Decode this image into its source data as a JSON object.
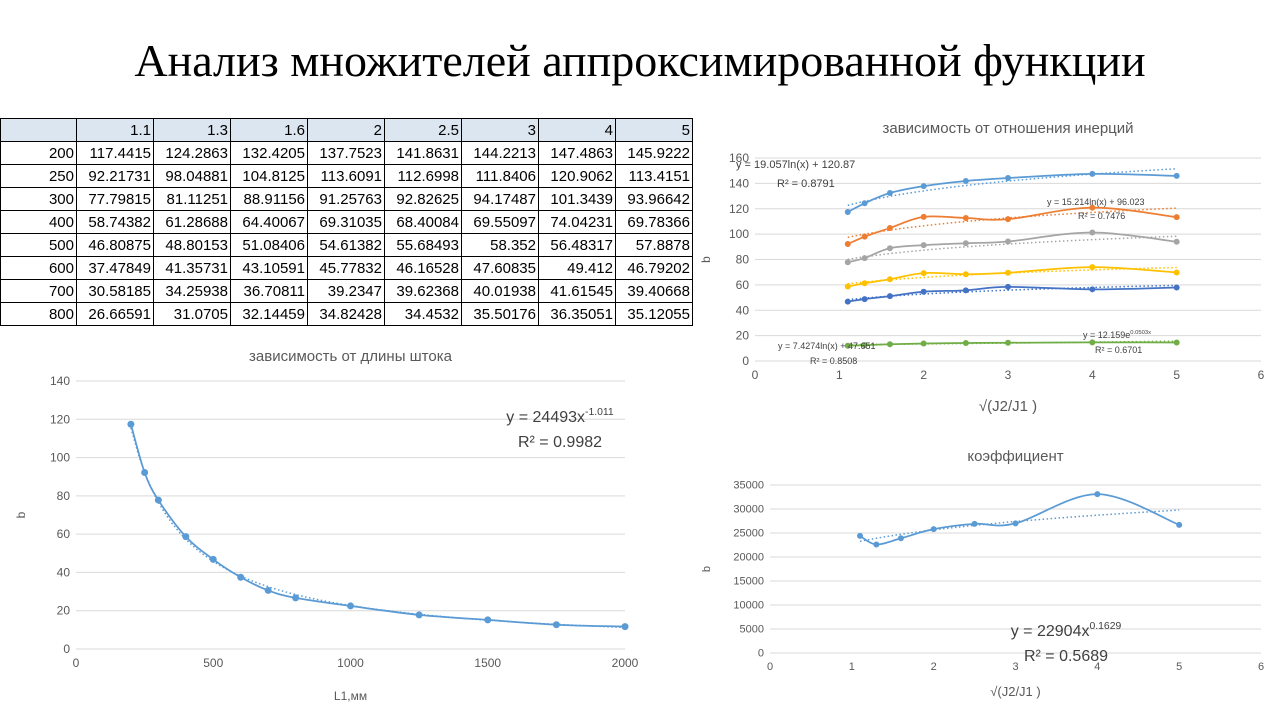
{
  "title": "Анализ множителей аппроксимированной функции",
  "table": {
    "columns": [
      "",
      "1.1",
      "1.3",
      "1.6",
      "2",
      "2.5",
      "3",
      "4",
      "5"
    ],
    "rows": [
      [
        "200",
        "117.4415",
        "124.2863",
        "132.4205",
        "137.7523",
        "141.8631",
        "144.2213",
        "147.4863",
        "145.9222"
      ],
      [
        "250",
        "92.21731",
        "98.04881",
        "104.8125",
        "113.6091",
        "112.6998",
        "111.8406",
        "120.9062",
        "113.4151"
      ],
      [
        "300",
        "77.79815",
        "81.11251",
        "88.91156",
        "91.25763",
        "92.82625",
        "94.17487",
        "101.3439",
        "93.96642"
      ],
      [
        "400",
        "58.74382",
        "61.28688",
        "64.40067",
        "69.31035",
        "68.40084",
        "69.55097",
        "74.04231",
        "69.78366"
      ],
      [
        "500",
        "46.80875",
        "48.80153",
        "51.08406",
        "54.61382",
        "55.68493",
        "58.352",
        "56.48317",
        "57.8878"
      ],
      [
        "600",
        "37.47849",
        "41.35731",
        "43.10591",
        "45.77832",
        "46.16528",
        "47.60835",
        "49.412",
        "46.79202"
      ],
      [
        "700",
        "30.58185",
        "34.25938",
        "36.70811",
        "39.2347",
        "39.62368",
        "40.01938",
        "41.61545",
        "39.40668"
      ],
      [
        "800",
        "26.66591",
        "31.0705",
        "32.14459",
        "34.82428",
        "34.4532",
        "35.50176",
        "36.35051",
        "35.12055"
      ]
    ]
  },
  "chart_data": [
    {
      "id": "inertia",
      "type": "line",
      "title": "зависимость от отношения инерций",
      "xlabel": "√(J2/J1 )",
      "ylabel": "b",
      "xlim": [
        0,
        6
      ],
      "ylim": [
        0,
        160
      ],
      "xticks": [
        0,
        1,
        2,
        3,
        4,
        5,
        6
      ],
      "yticks": [
        0,
        20,
        40,
        60,
        80,
        100,
        120,
        140,
        160
      ],
      "x": [
        1.1,
        1.3,
        1.6,
        2,
        2.5,
        3,
        4,
        5
      ],
      "series": [
        {
          "color": "#5b9bd5",
          "values": [
            117.4,
            124.3,
            132.4,
            137.8,
            141.9,
            144.2,
            147.5,
            145.9
          ]
        },
        {
          "color": "#ed7d31",
          "values": [
            92.2,
            98.0,
            104.8,
            113.6,
            112.7,
            111.8,
            120.9,
            113.4
          ]
        },
        {
          "color": "#a5a5a5",
          "values": [
            77.8,
            81.1,
            88.9,
            91.3,
            92.8,
            94.2,
            101.3,
            94.0
          ]
        },
        {
          "color": "#ffc000",
          "values": [
            58.7,
            61.3,
            64.4,
            69.3,
            68.4,
            69.6,
            74.0,
            69.8
          ]
        },
        {
          "color": "#4472c4",
          "values": [
            46.8,
            48.8,
            51.1,
            54.6,
            55.7,
            58.4,
            56.5,
            57.9
          ]
        },
        {
          "color": "#70ad47",
          "values": [
            12.0,
            12.5,
            13.2,
            13.8,
            14.2,
            14.4,
            14.7,
            14.6
          ]
        }
      ],
      "trendlines": [
        {
          "series": 0,
          "kind": "log",
          "a": 19.057,
          "b": 120.87
        },
        {
          "series": 1,
          "kind": "log",
          "a": 15.214,
          "b": 96.023
        },
        {
          "series": 2,
          "kind": "log",
          "a": 12.0,
          "b": 79.0
        },
        {
          "series": 3,
          "kind": "log",
          "a": 8.5,
          "b": 60.0
        },
        {
          "series": 4,
          "kind": "log",
          "a": 7.4274,
          "b": 47.651
        },
        {
          "series": 5,
          "kind": "exp",
          "a": 12.159,
          "b": 0.0503
        }
      ],
      "annotations": [
        {
          "eq": "y = 19.057ln(x) + 120.87",
          "r2": "R² = 0.8791"
        },
        {
          "eq": "y = 15.214ln(x) + 96.023",
          "r2": "R² = 0.7476"
        },
        {
          "eq": "y = 7.4274ln(x) + 47.651",
          "r2": "R² = 0.8508"
        },
        {
          "eq_base": "y = 12.159e",
          "eq_sup": "0.0503x",
          "r2": "R² = 0.6701"
        }
      ]
    },
    {
      "id": "rod",
      "type": "line",
      "title": "зависимость от длины штока",
      "xlabel": "L1,мм",
      "ylabel": "b",
      "xlim": [
        0,
        2000
      ],
      "ylim": [
        0,
        140
      ],
      "xticks": [
        0,
        500,
        1000,
        1500,
        2000
      ],
      "yticks": [
        0,
        20,
        40,
        60,
        80,
        100,
        120,
        140
      ],
      "x": [
        200,
        250,
        300,
        400,
        500,
        600,
        700,
        800,
        1000,
        1250,
        1500,
        1750,
        2000
      ],
      "series": [
        {
          "color": "#5b9bd5",
          "values": [
            117.4,
            92.2,
            77.8,
            58.7,
            46.8,
            37.5,
            30.6,
            26.7,
            22.5,
            17.8,
            15.2,
            12.7,
            11.7
          ]
        }
      ],
      "trendlines": [
        {
          "series": 0,
          "kind": "power",
          "a": 24493,
          "b": -1.011
        }
      ],
      "annotations": [
        {
          "eq_base": "y = 24493x",
          "eq_sup": "-1.011",
          "r2": "R² = 0.9982"
        }
      ]
    },
    {
      "id": "coef",
      "type": "line",
      "title": "коэффициент",
      "xlabel": "√(J2/J1 )",
      "ylabel": "b",
      "xlim": [
        0,
        6
      ],
      "ylim": [
        0,
        35000
      ],
      "xticks": [
        0,
        1,
        2,
        3,
        4,
        5,
        6
      ],
      "yticks": [
        0,
        5000,
        10000,
        15000,
        20000,
        25000,
        30000,
        35000
      ],
      "x": [
        1.1,
        1.3,
        1.6,
        2,
        2.5,
        3,
        4,
        5
      ],
      "series": [
        {
          "color": "#5b9bd5",
          "values": [
            24400,
            22600,
            23900,
            25800,
            26900,
            27000,
            33100,
            26700
          ]
        }
      ],
      "trendlines": [
        {
          "series": 0,
          "kind": "power",
          "a": 22904,
          "b": 0.1629
        }
      ],
      "annotations": [
        {
          "eq_base": "y = 22904x",
          "eq_sup": "0.1629",
          "r2": "R² = 0.5689"
        }
      ]
    }
  ]
}
